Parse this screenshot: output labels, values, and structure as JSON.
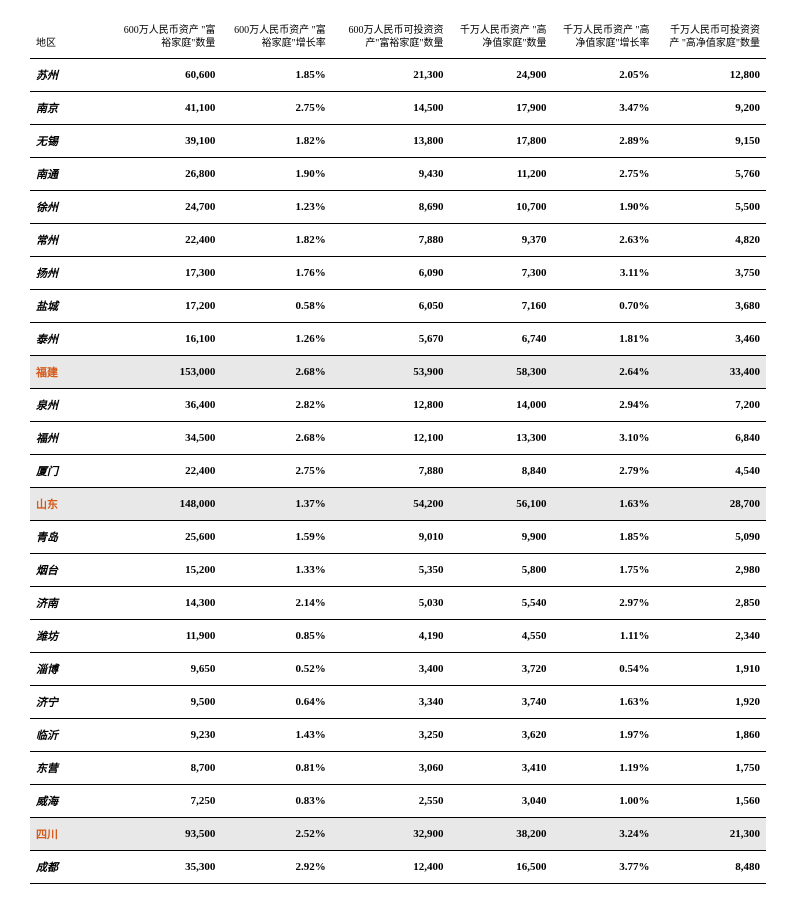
{
  "table": {
    "columns": [
      "地区",
      "600万人民币资产\n\"富裕家庭\"数量",
      "600万人民币资产\n\"富裕家庭\"增长率",
      "600万人民币可投资资\n产\"富裕家庭\"数量",
      "千万人民币资产\n\"高净值家庭\"数量",
      "千万人民币资产\n\"高净值家庭\"增长率",
      "千万人民币可投资资产\n\"高净值家庭\"数量"
    ],
    "rows": [
      {
        "province": false,
        "cells": [
          "苏州",
          "60,600",
          "1.85%",
          "21,300",
          "24,900",
          "2.05%",
          "12,800"
        ]
      },
      {
        "province": false,
        "cells": [
          "南京",
          "41,100",
          "2.75%",
          "14,500",
          "17,900",
          "3.47%",
          "9,200"
        ]
      },
      {
        "province": false,
        "cells": [
          "无锡",
          "39,100",
          "1.82%",
          "13,800",
          "17,800",
          "2.89%",
          "9,150"
        ]
      },
      {
        "province": false,
        "cells": [
          "南通",
          "26,800",
          "1.90%",
          "9,430",
          "11,200",
          "2.75%",
          "5,760"
        ]
      },
      {
        "province": false,
        "cells": [
          "徐州",
          "24,700",
          "1.23%",
          "8,690",
          "10,700",
          "1.90%",
          "5,500"
        ]
      },
      {
        "province": false,
        "cells": [
          "常州",
          "22,400",
          "1.82%",
          "7,880",
          "9,370",
          "2.63%",
          "4,820"
        ]
      },
      {
        "province": false,
        "cells": [
          "扬州",
          "17,300",
          "1.76%",
          "6,090",
          "7,300",
          "3.11%",
          "3,750"
        ]
      },
      {
        "province": false,
        "cells": [
          "盐城",
          "17,200",
          "0.58%",
          "6,050",
          "7,160",
          "0.70%",
          "3,680"
        ]
      },
      {
        "province": false,
        "cells": [
          "泰州",
          "16,100",
          "1.26%",
          "5,670",
          "6,740",
          "1.81%",
          "3,460"
        ]
      },
      {
        "province": true,
        "cells": [
          "福建",
          "153,000",
          "2.68%",
          "53,900",
          "58,300",
          "2.64%",
          "33,400"
        ]
      },
      {
        "province": false,
        "cells": [
          "泉州",
          "36,400",
          "2.82%",
          "12,800",
          "14,000",
          "2.94%",
          "7,200"
        ]
      },
      {
        "province": false,
        "cells": [
          "福州",
          "34,500",
          "2.68%",
          "12,100",
          "13,300",
          "3.10%",
          "6,840"
        ]
      },
      {
        "province": false,
        "cells": [
          "厦门",
          "22,400",
          "2.75%",
          "7,880",
          "8,840",
          "2.79%",
          "4,540"
        ]
      },
      {
        "province": true,
        "cells": [
          "山东",
          "148,000",
          "1.37%",
          "54,200",
          "56,100",
          "1.63%",
          "28,700"
        ]
      },
      {
        "province": false,
        "cells": [
          "青岛",
          "25,600",
          "1.59%",
          "9,010",
          "9,900",
          "1.85%",
          "5,090"
        ]
      },
      {
        "province": false,
        "cells": [
          "烟台",
          "15,200",
          "1.33%",
          "5,350",
          "5,800",
          "1.75%",
          "2,980"
        ]
      },
      {
        "province": false,
        "cells": [
          "济南",
          "14,300",
          "2.14%",
          "5,030",
          "5,540",
          "2.97%",
          "2,850"
        ]
      },
      {
        "province": false,
        "cells": [
          "潍坊",
          "11,900",
          "0.85%",
          "4,190",
          "4,550",
          "1.11%",
          "2,340"
        ]
      },
      {
        "province": false,
        "cells": [
          "淄博",
          "9,650",
          "0.52%",
          "3,400",
          "3,720",
          "0.54%",
          "1,910"
        ]
      },
      {
        "province": false,
        "cells": [
          "济宁",
          "9,500",
          "0.64%",
          "3,340",
          "3,740",
          "1.63%",
          "1,920"
        ]
      },
      {
        "province": false,
        "cells": [
          "临沂",
          "9,230",
          "1.43%",
          "3,250",
          "3,620",
          "1.97%",
          "1,860"
        ]
      },
      {
        "province": false,
        "cells": [
          "东营",
          "8,700",
          "0.81%",
          "3,060",
          "3,410",
          "1.19%",
          "1,750"
        ]
      },
      {
        "province": false,
        "cells": [
          "威海",
          "7,250",
          "0.83%",
          "2,550",
          "3,040",
          "1.00%",
          "1,560"
        ]
      },
      {
        "province": true,
        "cells": [
          "四川",
          "93,500",
          "2.52%",
          "32,900",
          "38,200",
          "3.24%",
          "21,300"
        ]
      },
      {
        "province": false,
        "cells": [
          "成都",
          "35,300",
          "2.92%",
          "12,400",
          "16,500",
          "3.77%",
          "8,480"
        ]
      }
    ],
    "style": {
      "background_color": "#ffffff",
      "text_color": "#000000",
      "province_bg": "#e8e8e8",
      "province_name_color": "#d45a1a",
      "border_color": "#000000",
      "header_fontsize": 10,
      "cell_fontsize": 11,
      "cell_fontweight": "bold"
    }
  }
}
